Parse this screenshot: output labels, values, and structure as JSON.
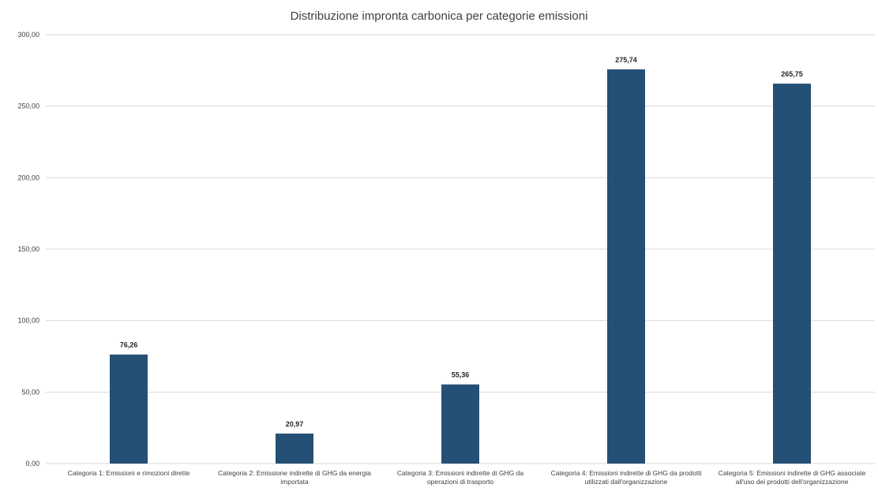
{
  "chart_data": {
    "type": "bar",
    "title": "Distribuzione impronta carbonica per categorie emissioni",
    "xlabel": "",
    "ylabel": "",
    "ylim": [
      0,
      300
    ],
    "yticks": [
      "0,00",
      "50,00",
      "100,00",
      "150,00",
      "200,00",
      "250,00",
      "300,00"
    ],
    "categories": [
      [
        "Categoria 1: Emissioni e rimozioni dirette"
      ],
      [
        "Categoria 2: Emissione indirette di GHG da energia",
        "importata"
      ],
      [
        "Categoria 3: Emissioni indirette di GHG da",
        "operazioni di trasporto"
      ],
      [
        "Categoria 4: Emissioni indirette di GHG da prodotti",
        "utilizzati dall'organizzazione"
      ],
      [
        "Categoria 5: Emissioni indirette di GHG associate",
        "all'uso dei prodotti dell'organizzazione"
      ]
    ],
    "values": [
      76.26,
      20.97,
      55.36,
      275.74,
      265.75
    ],
    "data_labels": [
      "76,26",
      "20,97",
      "55,36",
      "275,74",
      "265,75"
    ],
    "bar_color": "#245075",
    "grid": true,
    "legend": "none"
  }
}
